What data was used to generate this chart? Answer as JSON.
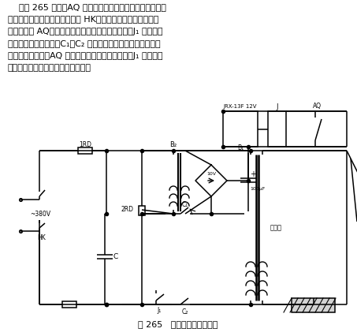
{
  "fig_width": 4.53,
  "fig_height": 4.26,
  "bg_color": "#ffffff",
  "para_lines": [
    "    如图 265 所示，AQ 是加装在电焊钳胶柄上的微型按钮开",
    "关。当使用电焊机时，合上刀闸 HK，手握电焊钳胶柄，拇指随",
    "即按下开关 AQ，小型继电器得到低压直流电动作，J₁ 闭合，交",
    "流接触器又得电吸合。C₁、C₂ 触点接触，电焊机工作。焊接停",
    "止时，拇指抬起，AQ 恢复原位，继电器失电动作，J₁ 开路，交",
    "流接触器释放，电焊机电源被切断。"
  ],
  "caption": "图 265   一种电焊机节电方法",
  "para_fs": 8.0,
  "caption_fs": 8.0
}
